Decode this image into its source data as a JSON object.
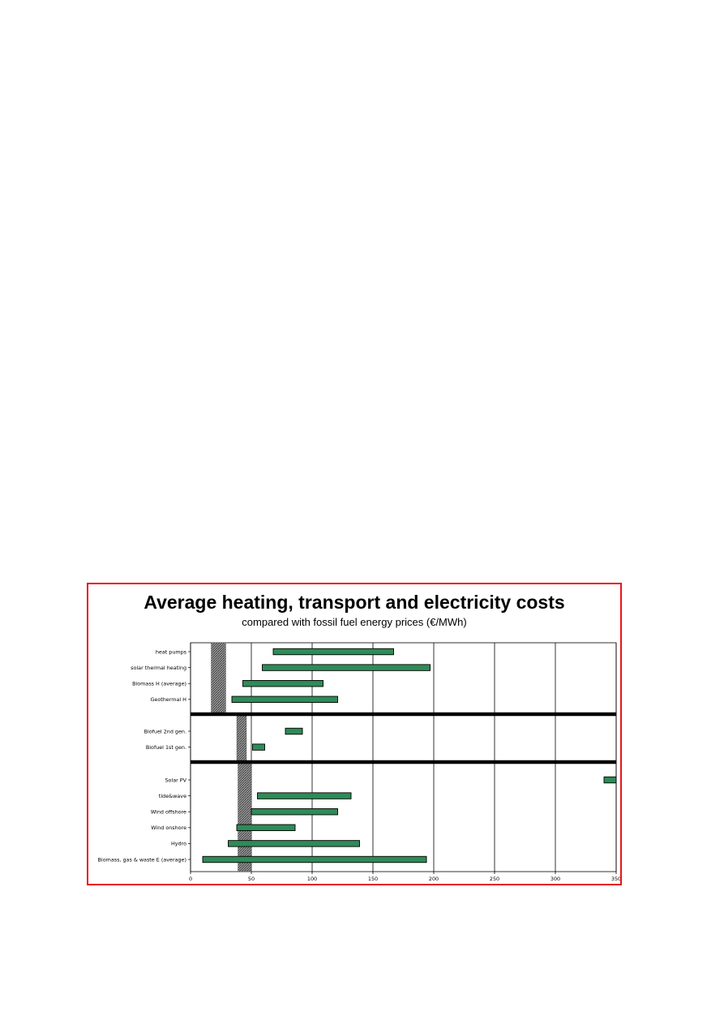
{
  "chart_data": {
    "type": "bar",
    "subtype": "floating-range-bar",
    "orientation": "horizontal",
    "title": "Average heating, transport and electricity costs",
    "subtitle": "compared with fossil fuel energy prices (€/MWh)",
    "xlim": [
      0,
      350
    ],
    "xticks": [
      0,
      50,
      100,
      150,
      200,
      250,
      300,
      350
    ],
    "grid": "vertical",
    "bar_color": "#2e8b57",
    "fossil_band_style": "hatched-grey",
    "groups": [
      {
        "fossil_range": [
          17,
          29
        ],
        "categories": [
          {
            "label": "heat pumps",
            "range": [
              68,
              167
            ]
          },
          {
            "label": "solar thermal heating",
            "range": [
              59,
              197
            ]
          },
          {
            "label": "Biomass H (average)",
            "range": [
              43,
              109
            ]
          },
          {
            "label": "Geothermal H",
            "range": [
              34,
              121
            ]
          }
        ]
      },
      {
        "fossil_range": [
          38,
          46
        ],
        "categories": [
          {
            "label": "Biofuel 2nd gen.",
            "range": [
              78,
              92
            ]
          },
          {
            "label": "Biofuel 1st gen.",
            "range": [
              51,
              61
            ]
          }
        ]
      },
      {
        "fossil_range": [
          39,
          50
        ],
        "categories": [
          {
            "label": "Solar PV",
            "range": [
              340,
              350
            ]
          },
          {
            "label": "tide&wave",
            "range": [
              55,
              132
            ]
          },
          {
            "label": "Wind offshore",
            "range": [
              50,
              121
            ]
          },
          {
            "label": "Wind onshore",
            "range": [
              38,
              86
            ]
          },
          {
            "label": "Hydro",
            "range": [
              31,
              139
            ]
          },
          {
            "label": "Biomass, gas & waste E (average)",
            "range": [
              10,
              194
            ]
          }
        ]
      }
    ]
  }
}
